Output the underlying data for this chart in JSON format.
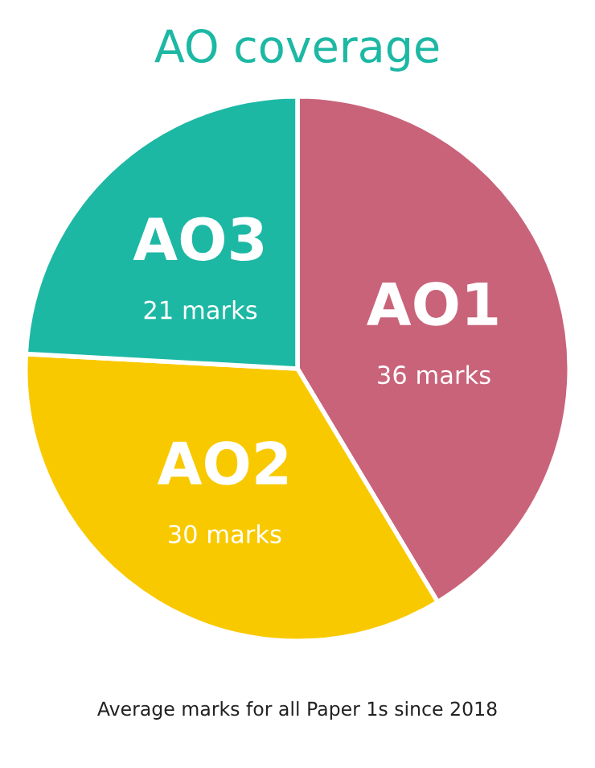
{
  "chart_data": {
    "type": "pie",
    "title": "AO coverage",
    "categories": [
      "AO1",
      "AO2",
      "AO3"
    ],
    "values": [
      36,
      30,
      21
    ],
    "value_labels": [
      "36 marks",
      "30 marks",
      "21 marks"
    ],
    "colors": [
      "#c9637a",
      "#f9c900",
      "#1db8a4"
    ],
    "annotations": [
      "Average marks for all Paper 1s since 2018"
    ]
  }
}
